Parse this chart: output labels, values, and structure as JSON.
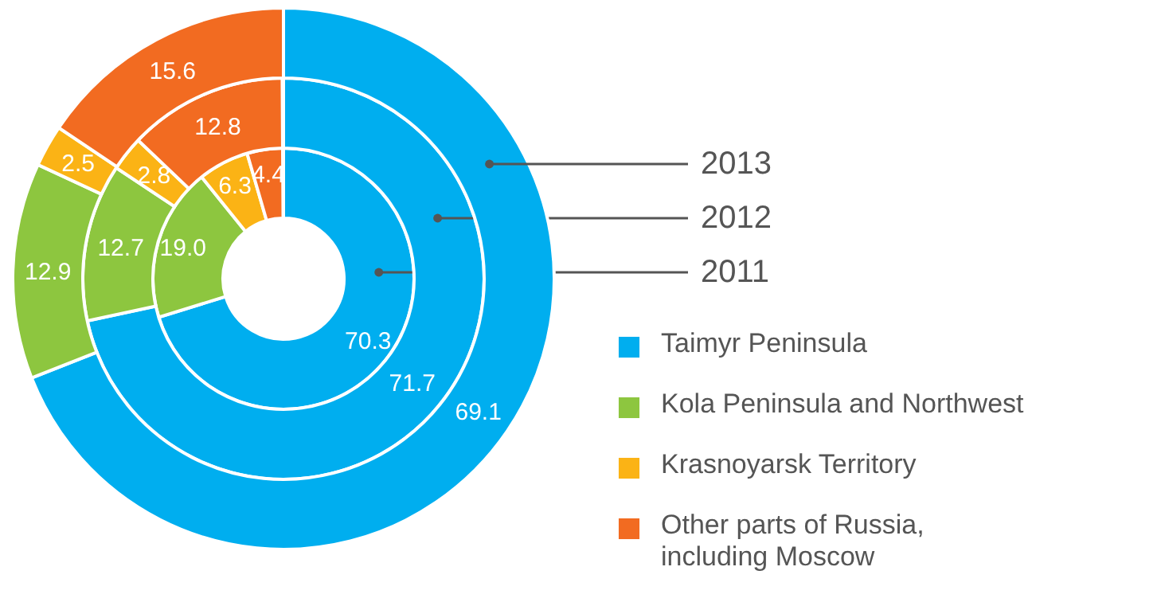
{
  "chart_data": {
    "type": "donut",
    "categories": [
      "Taimyr Peninsula",
      "Kola Peninsula and Northwest",
      "Krasnoyarsk Territory",
      "Other parts of Russia, including Moscow"
    ],
    "colors": [
      "#00aeef",
      "#8dc63f",
      "#fbb315",
      "#f26b21"
    ],
    "series": [
      {
        "name": "2011",
        "values": [
          70.3,
          19.0,
          6.3,
          4.4
        ],
        "value_labels": [
          "70.3",
          "19.0",
          "6.3",
          "4.4"
        ]
      },
      {
        "name": "2012",
        "values": [
          71.7,
          12.7,
          2.8,
          12.8
        ],
        "value_labels": [
          "71.7",
          "12.7",
          "2.8",
          "12.8"
        ]
      },
      {
        "name": "2013",
        "values": [
          69.1,
          12.9,
          2.5,
          15.6
        ],
        "value_labels": [
          "69.1",
          "12.9",
          "2.5",
          "15.6"
        ]
      }
    ],
    "legend": "bottom right"
  }
}
